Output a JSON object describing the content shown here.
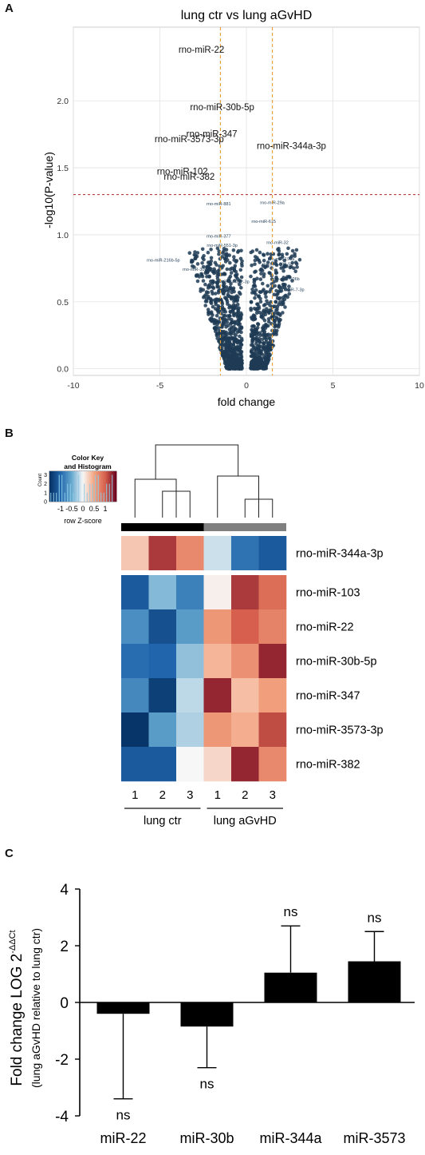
{
  "panels": [
    "A",
    "B",
    "C"
  ],
  "chart_data": [
    {
      "type": "scatter",
      "title": "lung ctr vs lung aGvHD",
      "xlabel": "fold change",
      "ylabel": "-log10(P-value)",
      "xlim": [
        -10,
        10
      ],
      "ylim": [
        -0.05,
        2.55
      ],
      "xticks": [
        "-10",
        "-5",
        "0",
        "5",
        "10"
      ],
      "yticks": [
        "0.0",
        "0.5",
        "1.0",
        "1.5",
        "2.0"
      ],
      "grid": true,
      "vertical_cutoffs": [
        -1.5,
        1.5
      ],
      "significance_line": 1.3,
      "labeled_points": [
        {
          "label": "rno-miR-22",
          "x": -2.6,
          "y": 2.36
        },
        {
          "label": "rno-miR-30b-5p",
          "x": -1.4,
          "y": 1.93
        },
        {
          "label": "rno-miR-347",
          "x": -2.0,
          "y": 1.73
        },
        {
          "label": "rno-miR-3573-3p",
          "x": -3.3,
          "y": 1.69
        },
        {
          "label": "rno-miR-344a-3p",
          "x": 2.6,
          "y": 1.64
        },
        {
          "label": "rno-miR-102",
          "x": -3.7,
          "y": 1.45
        },
        {
          "label": "rno-miR-382",
          "x": -3.3,
          "y": 1.41
        }
      ],
      "minor_labels": [
        {
          "label": "rno-miR-881",
          "x": -1.6,
          "y": 1.22
        },
        {
          "label": "rno-miR-29a",
          "x": 1.5,
          "y": 1.23
        },
        {
          "label": "rno-miR-615",
          "x": 1.0,
          "y": 1.09
        },
        {
          "label": "rno-miR-377",
          "x": -1.6,
          "y": 0.98
        },
        {
          "label": "rno-miR-32",
          "x": 1.8,
          "y": 0.93
        },
        {
          "label": "rno-miR-196a",
          "x": 2.0,
          "y": 0.81
        },
        {
          "label": "rno-miR-551-3p",
          "x": -1.4,
          "y": 0.91
        },
        {
          "label": "rno-miR-216b-5p",
          "x": -4.8,
          "y": 0.8
        },
        {
          "label": "rno-miR-300-5p",
          "x": -2.8,
          "y": 0.73
        },
        {
          "label": "rno-miR-344b-2-3p",
          "x": -0.9,
          "y": 0.64
        },
        {
          "label": "rno-miR-338-5p",
          "x": 1.8,
          "y": 0.77
        },
        {
          "label": "rno-miR-106b",
          "x": 2.3,
          "y": 0.66
        },
        {
          "label": "rno-miR-7-3p",
          "x": 2.6,
          "y": 0.58
        }
      ]
    },
    {
      "type": "heatmap",
      "color_key_title": "Color Key",
      "color_key_subtitle": "and Histogram",
      "color_key_xlabel": "row Z-score",
      "color_key_ticks": [
        "-1",
        "-0.5",
        "0",
        "0.5",
        "1"
      ],
      "color_key_yaxis_label": "Count",
      "color_key_yticks": [
        "0",
        "1",
        "2",
        "3"
      ],
      "columns": [
        "1",
        "2",
        "3",
        "1",
        "2",
        "3"
      ],
      "groups": [
        {
          "name": "lung ctr",
          "color": "#000000"
        },
        {
          "name": "lung aGvHD",
          "color": "#808080"
        }
      ],
      "rows": [
        {
          "name": "rno-miR-344a-3p",
          "z": [
            0.3,
            1.2,
            0.7,
            -0.15,
            -0.9,
            -1.1
          ]
        },
        {
          "name": "rno-miR-103",
          "z": [
            -1.1,
            -0.4,
            -0.8,
            0.05,
            1.2,
            0.9
          ]
        },
        {
          "name": "rno-miR-22",
          "z": [
            -0.7,
            -1.2,
            -0.6,
            0.6,
            1.0,
            0.75
          ]
        },
        {
          "name": "rno-miR-30b-5p",
          "z": [
            -0.95,
            -1.0,
            -0.35,
            0.4,
            0.65,
            1.3
          ]
        },
        {
          "name": "rno-miR-347",
          "z": [
            -0.75,
            -1.35,
            -0.2,
            1.3,
            0.35,
            0.55
          ]
        },
        {
          "name": "rno-miR-3573-3p",
          "z": [
            -1.45,
            -0.6,
            -0.25,
            0.6,
            0.45,
            1.1
          ]
        },
        {
          "name": "rno-miR-382",
          "z": [
            -1.1,
            -1.1,
            0.0,
            0.2,
            1.3,
            0.7
          ]
        }
      ]
    },
    {
      "type": "bar",
      "ylabel_main": "Fold change LOG 2",
      "ylabel_sup": "-ΔΔCt",
      "ylabel_sub": "(lung aGvHD relative to lung ctr)",
      "ylim": [
        -4,
        4
      ],
      "yticks": [
        "-4",
        "-2",
        "0",
        "2",
        "4"
      ],
      "categories": [
        "miR-22",
        "miR-30b",
        "miR-344a",
        "miR-3573"
      ],
      "values": [
        -0.4,
        -0.85,
        1.05,
        1.45
      ],
      "error": [
        3.0,
        1.45,
        1.65,
        1.05
      ],
      "annotations": [
        "ns",
        "ns",
        "ns",
        "ns"
      ]
    }
  ]
}
